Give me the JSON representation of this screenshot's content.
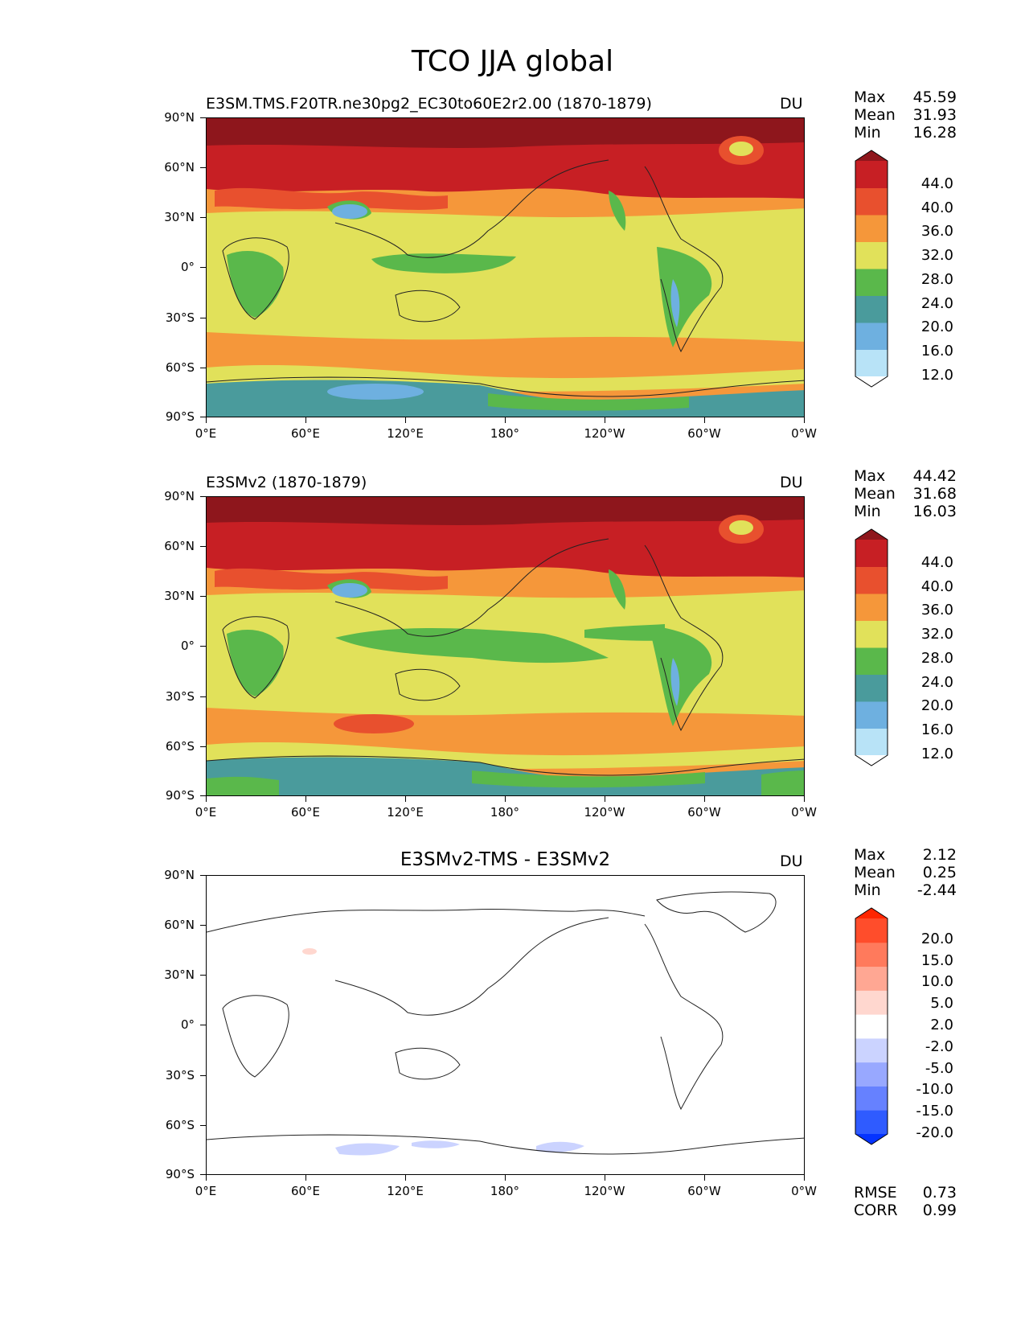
{
  "figure": {
    "title": "TCO JJA global"
  },
  "units": "DU",
  "lat_labels": [
    "90°N",
    "60°N",
    "30°N",
    "0°",
    "30°S",
    "60°S",
    "90°S"
  ],
  "lon_labels": [
    "0°E",
    "60°E",
    "120°E",
    "180°",
    "120°W",
    "60°W",
    "0°W"
  ],
  "colors": {
    "abs": [
      "#ffffff",
      "#b8e3f7",
      "#6eb0e0",
      "#4a9b9c",
      "#5ab84b",
      "#e1e15a",
      "#f5973a",
      "#e8502e",
      "#c71f24",
      "#8e161c"
    ],
    "diff": [
      "#0433ff",
      "#2f5bff",
      "#6681ff",
      "#98a8ff",
      "#cbd3ff",
      "#ffffff",
      "#ffd7cf",
      "#ffa793",
      "#ff7a5c",
      "#ff4d2b",
      "#ff2600"
    ]
  },
  "panels": [
    {
      "title": "E3SM.TMS.F20TR.ne30pg2_EC30to60E2r2.00 (1870-1879)",
      "units": "DU",
      "stats": [
        {
          "label": "Max",
          "value": "45.59"
        },
        {
          "label": "Mean",
          "value": "31.93"
        },
        {
          "label": "Min",
          "value": "16.28"
        }
      ],
      "colorbar": {
        "labels": [
          "44.0",
          "40.0",
          "36.0",
          "32.0",
          "28.0",
          "24.0",
          "20.0",
          "16.0",
          "12.0"
        ]
      }
    },
    {
      "title": "E3SMv2 (1870-1879)",
      "units": "DU",
      "stats": [
        {
          "label": "Max",
          "value": "44.42"
        },
        {
          "label": "Mean",
          "value": "31.68"
        },
        {
          "label": "Min",
          "value": "16.03"
        }
      ],
      "colorbar": {
        "labels": [
          "44.0",
          "40.0",
          "36.0",
          "32.0",
          "28.0",
          "24.0",
          "20.0",
          "16.0",
          "12.0"
        ]
      }
    },
    {
      "title": "E3SMv2-TMS - E3SMv2",
      "units": "DU",
      "stats": [
        {
          "label": "Max",
          "value": "2.12"
        },
        {
          "label": "Mean",
          "value": "0.25"
        },
        {
          "label": "Min",
          "value": "-2.44"
        }
      ],
      "colorbar": {
        "labels": [
          "20.0",
          "15.0",
          "10.0",
          "5.0",
          "2.0",
          "-2.0",
          "-5.0",
          "-10.0",
          "-15.0",
          "-20.0"
        ]
      },
      "extra_stats": [
        {
          "label": "RMSE",
          "value": "0.73"
        },
        {
          "label": "CORR",
          "value": "0.99"
        }
      ]
    }
  ]
}
